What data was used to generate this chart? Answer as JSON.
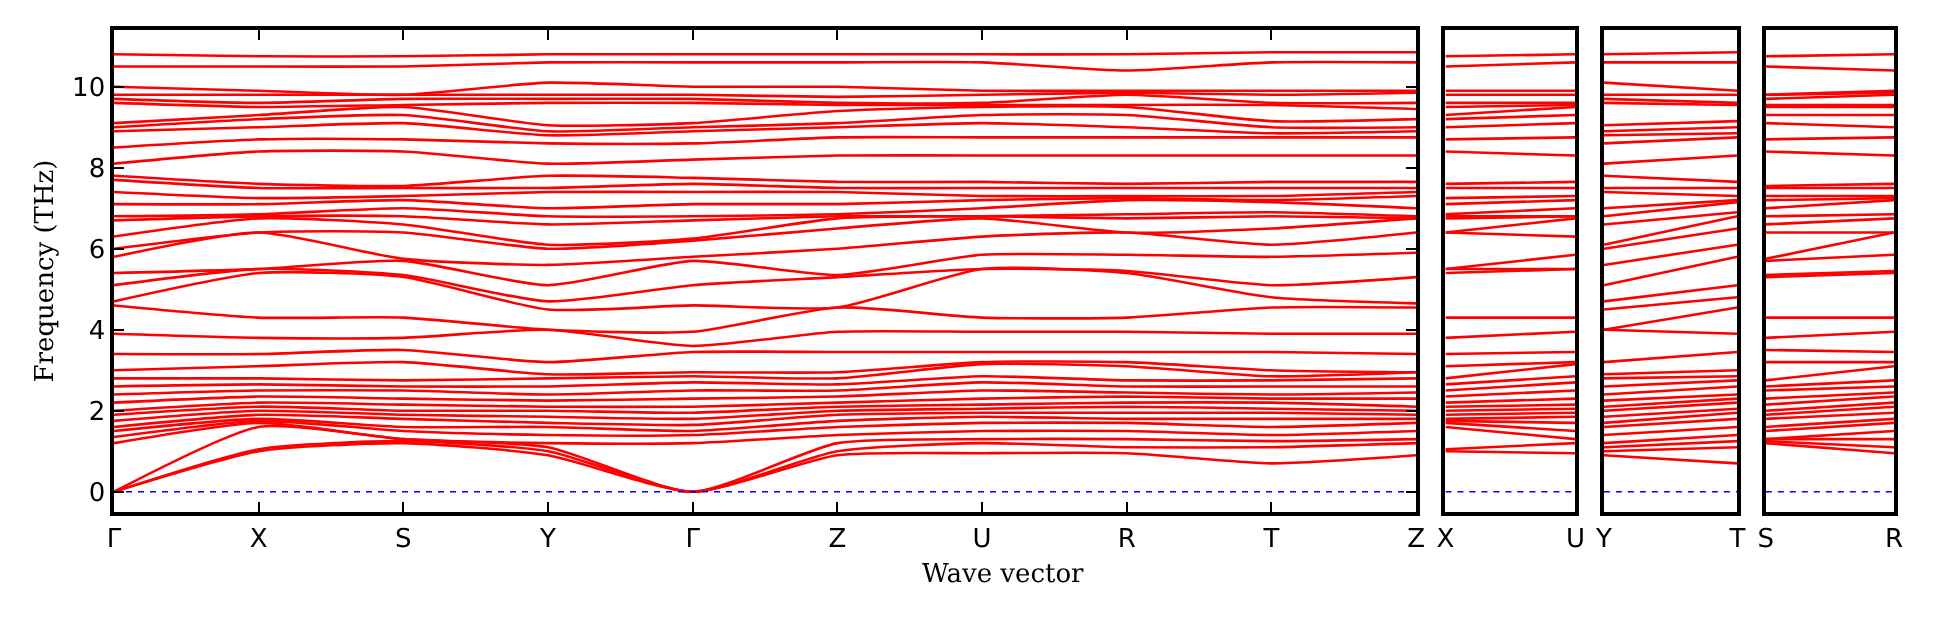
{
  "chart_data": [
    {
      "type": "line",
      "color": "#ff0000",
      "ylabel": "Frequency (THz)",
      "xlabel": "Wave vector",
      "line_style": "solid",
      "categories": [
        "Γ",
        "X",
        "S",
        "Y",
        "Γ",
        "Z",
        "U",
        "R",
        "T",
        "Z"
      ],
      "ylim": [
        -0.5,
        11.4
      ],
      "yticks": [
        0,
        2,
        4,
        6,
        8,
        10
      ],
      "ref_lines": [
        {
          "axis": "y",
          "value": 0,
          "line_style": "dotted",
          "color": "#0000ff"
        }
      ],
      "series": [
        {
          "values": [
            0,
            1.0,
            1.2,
            0.9,
            0,
            0.9,
            0.95,
            0.95,
            0.7,
            0.9
          ]
        },
        {
          "values": [
            0,
            1.05,
            1.25,
            1.0,
            0,
            1.0,
            1.2,
            1.1,
            1.1,
            1.2
          ]
        },
        {
          "values": [
            0,
            1.6,
            1.3,
            1.1,
            0,
            1.2,
            1.3,
            1.3,
            1.25,
            1.3
          ]
        },
        {
          "values": [
            1.2,
            1.7,
            1.3,
            1.2,
            1.2,
            1.4,
            1.5,
            1.5,
            1.4,
            1.5
          ]
        },
        {
          "values": [
            1.35,
            1.75,
            1.5,
            1.4,
            1.4,
            1.6,
            1.7,
            1.7,
            1.6,
            1.7
          ]
        },
        {
          "values": [
            1.5,
            1.8,
            1.6,
            1.6,
            1.5,
            1.75,
            1.85,
            1.8,
            1.8,
            1.8
          ]
        },
        {
          "values": [
            1.6,
            1.9,
            1.8,
            1.7,
            1.65,
            1.9,
            1.95,
            1.95,
            1.95,
            1.9
          ]
        },
        {
          "values": [
            1.75,
            2.0,
            1.9,
            1.85,
            1.8,
            2.0,
            2.05,
            2.1,
            2.05,
            2.0
          ]
        },
        {
          "values": [
            1.9,
            2.1,
            2.0,
            2.0,
            1.95,
            2.1,
            2.15,
            2.2,
            2.2,
            2.1
          ]
        },
        {
          "values": [
            2.0,
            2.2,
            2.15,
            2.1,
            2.1,
            2.2,
            2.3,
            2.35,
            2.3,
            2.3
          ]
        },
        {
          "values": [
            2.2,
            2.35,
            2.3,
            2.25,
            2.3,
            2.35,
            2.5,
            2.45,
            2.4,
            2.45
          ]
        },
        {
          "values": [
            2.4,
            2.5,
            2.5,
            2.4,
            2.5,
            2.5,
            2.7,
            2.6,
            2.6,
            2.6
          ]
        },
        {
          "values": [
            2.6,
            2.65,
            2.6,
            2.6,
            2.7,
            2.65,
            2.85,
            2.75,
            2.75,
            2.8
          ]
        },
        {
          "values": [
            2.8,
            2.8,
            2.75,
            2.8,
            2.85,
            2.8,
            3.15,
            3.1,
            2.85,
            2.95
          ]
        },
        {
          "values": [
            3.0,
            3.1,
            3.2,
            2.9,
            2.95,
            2.95,
            3.2,
            3.2,
            3.0,
            2.95
          ]
        },
        {
          "values": [
            3.4,
            3.4,
            3.5,
            3.2,
            3.45,
            3.45,
            3.45,
            3.45,
            3.45,
            3.4
          ]
        },
        {
          "values": [
            3.9,
            3.8,
            3.8,
            4.0,
            3.6,
            3.95,
            3.95,
            3.95,
            3.9,
            3.9
          ]
        },
        {
          "values": [
            4.6,
            4.3,
            4.3,
            4.0,
            3.95,
            4.55,
            4.3,
            4.3,
            4.55,
            4.55
          ]
        },
        {
          "values": [
            4.7,
            5.4,
            5.3,
            4.5,
            4.6,
            4.55,
            5.5,
            5.4,
            4.8,
            4.65
          ]
        },
        {
          "values": [
            5.1,
            5.5,
            5.35,
            4.7,
            5.1,
            5.3,
            5.5,
            5.45,
            5.1,
            5.3
          ]
        },
        {
          "values": [
            5.4,
            5.5,
            5.7,
            5.1,
            5.7,
            5.35,
            5.85,
            5.85,
            5.8,
            5.9
          ]
        },
        {
          "values": [
            5.8,
            6.4,
            5.75,
            5.6,
            5.8,
            6.0,
            6.3,
            6.4,
            6.1,
            6.4
          ]
        },
        {
          "values": [
            6.0,
            6.4,
            6.4,
            6.0,
            6.2,
            6.5,
            6.75,
            6.4,
            6.5,
            6.75
          ]
        },
        {
          "values": [
            6.3,
            6.75,
            6.6,
            6.1,
            6.25,
            6.75,
            6.8,
            6.75,
            6.8,
            6.75
          ]
        },
        {
          "values": [
            6.7,
            6.8,
            6.8,
            6.6,
            6.7,
            6.8,
            6.8,
            6.85,
            6.9,
            6.8
          ]
        },
        {
          "values": [
            6.8,
            6.85,
            7.0,
            6.8,
            6.8,
            6.85,
            7.0,
            7.2,
            7.15,
            7.0
          ]
        },
        {
          "values": [
            7.1,
            7.1,
            7.2,
            7.0,
            7.1,
            7.1,
            7.2,
            7.25,
            7.2,
            7.3
          ]
        },
        {
          "values": [
            7.4,
            7.25,
            7.3,
            7.4,
            7.4,
            7.4,
            7.3,
            7.3,
            7.3,
            7.4
          ]
        },
        {
          "values": [
            7.7,
            7.5,
            7.5,
            7.5,
            7.6,
            7.5,
            7.5,
            7.5,
            7.5,
            7.5
          ]
        },
        {
          "values": [
            7.8,
            7.6,
            7.55,
            7.8,
            7.75,
            7.65,
            7.65,
            7.6,
            7.65,
            7.65
          ]
        },
        {
          "values": [
            8.1,
            8.4,
            8.4,
            8.1,
            8.2,
            8.3,
            8.3,
            8.3,
            8.3,
            8.3
          ]
        },
        {
          "values": [
            8.5,
            8.7,
            8.7,
            8.6,
            8.6,
            8.75,
            8.75,
            8.75,
            8.75,
            8.75
          ]
        },
        {
          "values": [
            8.9,
            9.0,
            9.1,
            8.8,
            8.9,
            9.0,
            9.1,
            9.0,
            8.85,
            8.9
          ]
        },
        {
          "values": [
            9.0,
            9.2,
            9.3,
            8.9,
            9.0,
            9.1,
            9.3,
            9.3,
            9.0,
            9.0
          ]
        },
        {
          "values": [
            9.1,
            9.3,
            9.5,
            9.05,
            9.1,
            9.4,
            9.5,
            9.5,
            9.15,
            9.2
          ]
        },
        {
          "values": [
            9.6,
            9.5,
            9.55,
            9.6,
            9.6,
            9.55,
            9.55,
            9.55,
            9.55,
            9.45
          ]
        },
        {
          "values": [
            9.7,
            9.6,
            9.7,
            9.7,
            9.7,
            9.6,
            9.6,
            9.8,
            9.6,
            9.6
          ]
        },
        {
          "values": [
            9.8,
            9.8,
            9.8,
            9.8,
            9.8,
            9.75,
            9.8,
            9.85,
            9.8,
            9.85
          ]
        },
        {
          "values": [
            10.0,
            9.9,
            9.8,
            10.1,
            10.0,
            10.0,
            9.9,
            9.9,
            9.9,
            9.9
          ]
        },
        {
          "values": [
            10.5,
            10.5,
            10.5,
            10.6,
            10.6,
            10.6,
            10.6,
            10.4,
            10.6,
            10.6
          ]
        },
        {
          "values": [
            10.8,
            10.75,
            10.75,
            10.8,
            10.8,
            10.8,
            10.8,
            10.8,
            10.85,
            10.85
          ]
        }
      ]
    },
    {
      "type": "line",
      "color": "#ff0000",
      "line_style": "solid",
      "tick_labels": "x",
      "categories": [
        "X",
        "U"
      ],
      "ylim": [
        -0.5,
        11.4
      ],
      "ref_lines": [
        {
          "axis": "y",
          "value": 0,
          "line_style": "dotted",
          "color": "#0000ff"
        }
      ],
      "series": [
        {
          "values": [
            1.0,
            0.95
          ]
        },
        {
          "values": [
            1.05,
            1.2
          ]
        },
        {
          "values": [
            1.6,
            1.3
          ]
        },
        {
          "values": [
            1.7,
            1.5
          ]
        },
        {
          "values": [
            1.75,
            1.7
          ]
        },
        {
          "values": [
            1.8,
            1.85
          ]
        },
        {
          "values": [
            1.9,
            1.95
          ]
        },
        {
          "values": [
            2.0,
            2.05
          ]
        },
        {
          "values": [
            2.1,
            2.15
          ]
        },
        {
          "values": [
            2.2,
            2.3
          ]
        },
        {
          "values": [
            2.35,
            2.5
          ]
        },
        {
          "values": [
            2.5,
            2.7
          ]
        },
        {
          "values": [
            2.65,
            2.85
          ]
        },
        {
          "values": [
            2.8,
            3.15
          ]
        },
        {
          "values": [
            3.1,
            3.2
          ]
        },
        {
          "values": [
            3.4,
            3.45
          ]
        },
        {
          "values": [
            3.8,
            3.95
          ]
        },
        {
          "values": [
            4.3,
            4.3
          ]
        },
        {
          "values": [
            5.4,
            5.5
          ]
        },
        {
          "values": [
            5.5,
            5.5
          ]
        },
        {
          "values": [
            5.5,
            5.85
          ]
        },
        {
          "values": [
            6.4,
            6.3
          ]
        },
        {
          "values": [
            6.4,
            6.75
          ]
        },
        {
          "values": [
            6.75,
            6.8
          ]
        },
        {
          "values": [
            6.8,
            6.8
          ]
        },
        {
          "values": [
            6.85,
            7.0
          ]
        },
        {
          "values": [
            7.1,
            7.2
          ]
        },
        {
          "values": [
            7.25,
            7.3
          ]
        },
        {
          "values": [
            7.5,
            7.5
          ]
        },
        {
          "values": [
            7.6,
            7.65
          ]
        },
        {
          "values": [
            8.4,
            8.3
          ]
        },
        {
          "values": [
            8.7,
            8.75
          ]
        },
        {
          "values": [
            9.0,
            9.1
          ]
        },
        {
          "values": [
            9.2,
            9.3
          ]
        },
        {
          "values": [
            9.3,
            9.5
          ]
        },
        {
          "values": [
            9.5,
            9.55
          ]
        },
        {
          "values": [
            9.6,
            9.6
          ]
        },
        {
          "values": [
            9.8,
            9.8
          ]
        },
        {
          "values": [
            9.9,
            9.9
          ]
        },
        {
          "values": [
            10.5,
            10.6
          ]
        },
        {
          "values": [
            10.75,
            10.8
          ]
        }
      ]
    },
    {
      "type": "line",
      "color": "#ff0000",
      "line_style": "solid",
      "tick_labels": "x",
      "categories": [
        "Y",
        "T"
      ],
      "ylim": [
        -0.5,
        11.4
      ],
      "ref_lines": [
        {
          "axis": "y",
          "value": 0,
          "line_style": "dotted",
          "color": "#0000ff"
        }
      ],
      "series": [
        {
          "values": [
            0.9,
            0.7
          ]
        },
        {
          "values": [
            1.0,
            1.1
          ]
        },
        {
          "values": [
            1.1,
            1.25
          ]
        },
        {
          "values": [
            1.2,
            1.4
          ]
        },
        {
          "values": [
            1.4,
            1.6
          ]
        },
        {
          "values": [
            1.6,
            1.8
          ]
        },
        {
          "values": [
            1.7,
            1.95
          ]
        },
        {
          "values": [
            1.85,
            2.05
          ]
        },
        {
          "values": [
            2.0,
            2.2
          ]
        },
        {
          "values": [
            2.1,
            2.3
          ]
        },
        {
          "values": [
            2.25,
            2.4
          ]
        },
        {
          "values": [
            2.4,
            2.6
          ]
        },
        {
          "values": [
            2.6,
            2.75
          ]
        },
        {
          "values": [
            2.8,
            2.85
          ]
        },
        {
          "values": [
            2.9,
            3.0
          ]
        },
        {
          "values": [
            3.2,
            3.45
          ]
        },
        {
          "values": [
            4.0,
            3.9
          ]
        },
        {
          "values": [
            4.0,
            4.55
          ]
        },
        {
          "values": [
            4.5,
            4.8
          ]
        },
        {
          "values": [
            4.7,
            5.1
          ]
        },
        {
          "values": [
            5.1,
            5.8
          ]
        },
        {
          "values": [
            5.6,
            6.1
          ]
        },
        {
          "values": [
            6.0,
            6.5
          ]
        },
        {
          "values": [
            6.1,
            6.8
          ]
        },
        {
          "values": [
            6.6,
            6.9
          ]
        },
        {
          "values": [
            6.8,
            7.15
          ]
        },
        {
          "values": [
            7.0,
            7.2
          ]
        },
        {
          "values": [
            7.4,
            7.3
          ]
        },
        {
          "values": [
            7.5,
            7.5
          ]
        },
        {
          "values": [
            7.8,
            7.65
          ]
        },
        {
          "values": [
            8.1,
            8.3
          ]
        },
        {
          "values": [
            8.6,
            8.75
          ]
        },
        {
          "values": [
            8.8,
            8.85
          ]
        },
        {
          "values": [
            8.9,
            9.0
          ]
        },
        {
          "values": [
            9.05,
            9.15
          ]
        },
        {
          "values": [
            9.6,
            9.55
          ]
        },
        {
          "values": [
            9.7,
            9.6
          ]
        },
        {
          "values": [
            9.8,
            9.8
          ]
        },
        {
          "values": [
            10.1,
            9.9
          ]
        },
        {
          "values": [
            10.6,
            10.6
          ]
        },
        {
          "values": [
            10.8,
            10.85
          ]
        }
      ]
    },
    {
      "type": "line",
      "color": "#ff0000",
      "line_style": "solid",
      "tick_labels": "x",
      "categories": [
        "S",
        "R"
      ],
      "ylim": [
        -0.5,
        11.4
      ],
      "ref_lines": [
        {
          "axis": "y",
          "value": 0,
          "line_style": "dotted",
          "color": "#0000ff"
        }
      ],
      "series": [
        {
          "values": [
            1.2,
            0.95
          ]
        },
        {
          "values": [
            1.25,
            1.1
          ]
        },
        {
          "values": [
            1.3,
            1.3
          ]
        },
        {
          "values": [
            1.3,
            1.5
          ]
        },
        {
          "values": [
            1.5,
            1.7
          ]
        },
        {
          "values": [
            1.6,
            1.8
          ]
        },
        {
          "values": [
            1.8,
            1.95
          ]
        },
        {
          "values": [
            1.9,
            2.1
          ]
        },
        {
          "values": [
            2.0,
            2.2
          ]
        },
        {
          "values": [
            2.15,
            2.35
          ]
        },
        {
          "values": [
            2.3,
            2.45
          ]
        },
        {
          "values": [
            2.5,
            2.6
          ]
        },
        {
          "values": [
            2.6,
            2.75
          ]
        },
        {
          "values": [
            2.75,
            3.1
          ]
        },
        {
          "values": [
            3.2,
            3.2
          ]
        },
        {
          "values": [
            3.5,
            3.45
          ]
        },
        {
          "values": [
            3.8,
            3.95
          ]
        },
        {
          "values": [
            4.3,
            4.3
          ]
        },
        {
          "values": [
            5.3,
            5.4
          ]
        },
        {
          "values": [
            5.35,
            5.45
          ]
        },
        {
          "values": [
            5.7,
            5.85
          ]
        },
        {
          "values": [
            5.75,
            6.4
          ]
        },
        {
          "values": [
            6.4,
            6.4
          ]
        },
        {
          "values": [
            6.6,
            6.75
          ]
        },
        {
          "values": [
            6.8,
            6.85
          ]
        },
        {
          "values": [
            7.0,
            7.2
          ]
        },
        {
          "values": [
            7.2,
            7.25
          ]
        },
        {
          "values": [
            7.3,
            7.3
          ]
        },
        {
          "values": [
            7.5,
            7.5
          ]
        },
        {
          "values": [
            7.55,
            7.6
          ]
        },
        {
          "values": [
            8.4,
            8.3
          ]
        },
        {
          "values": [
            8.7,
            8.75
          ]
        },
        {
          "values": [
            9.1,
            9.0
          ]
        },
        {
          "values": [
            9.3,
            9.3
          ]
        },
        {
          "values": [
            9.5,
            9.5
          ]
        },
        {
          "values": [
            9.55,
            9.55
          ]
        },
        {
          "values": [
            9.7,
            9.8
          ]
        },
        {
          "values": [
            9.8,
            9.85
          ]
        },
        {
          "values": [
            9.8,
            9.9
          ]
        },
        {
          "values": [
            10.5,
            10.4
          ]
        },
        {
          "values": [
            10.75,
            10.8
          ]
        }
      ]
    }
  ]
}
